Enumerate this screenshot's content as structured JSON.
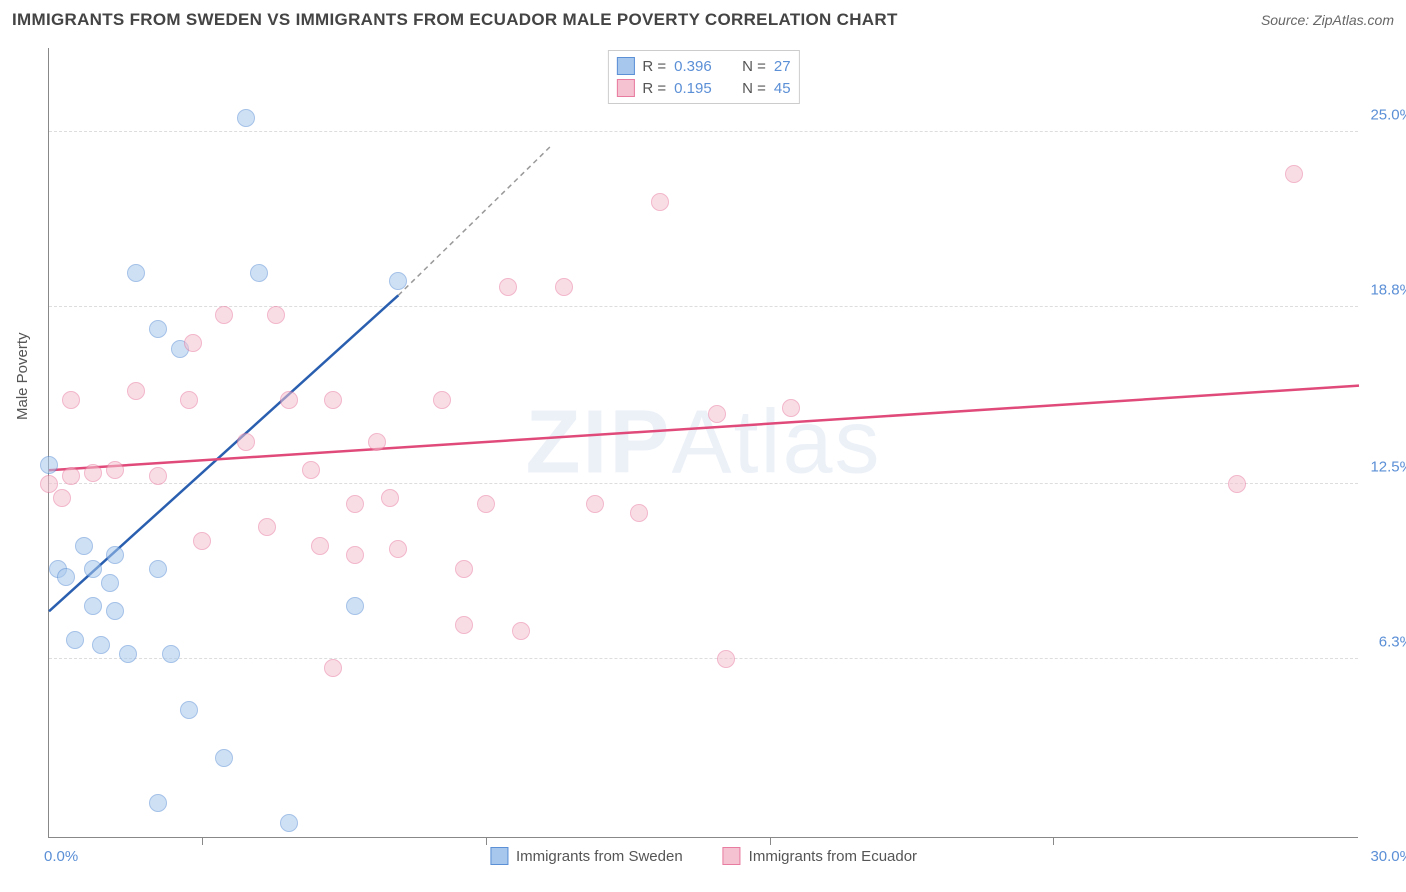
{
  "header": {
    "title": "IMMIGRANTS FROM SWEDEN VS IMMIGRANTS FROM ECUADOR MALE POVERTY CORRELATION CHART",
    "source": "Source: ZipAtlas.com"
  },
  "watermark": {
    "bold": "ZIP",
    "light": "Atlas"
  },
  "chart": {
    "type": "scatter",
    "ylabel": "Male Poverty",
    "xlim": [
      0,
      30
    ],
    "ylim": [
      0,
      28
    ],
    "x_axis_labels": {
      "left": "0.0%",
      "right": "30.0%"
    },
    "y_ticks": [
      {
        "value": 6.3,
        "label": "6.3%"
      },
      {
        "value": 12.5,
        "label": "12.5%"
      },
      {
        "value": 18.8,
        "label": "18.8%"
      },
      {
        "value": 25.0,
        "label": "25.0%"
      }
    ],
    "x_tick_positions": [
      3.5,
      10,
      16.5,
      23
    ],
    "grid_color": "#dddddd",
    "axis_color": "#888888",
    "background_color": "#ffffff",
    "point_radius": 9,
    "point_opacity": 0.55,
    "series": [
      {
        "name": "Immigrants from Sweden",
        "fill_color": "#a7c8ec",
        "stroke_color": "#5b8fd6",
        "trend_color": "#2a5fb0",
        "R": "0.396",
        "N": "27",
        "trend": {
          "x1": 0,
          "y1": 8.0,
          "x2": 8.0,
          "y2": 19.2,
          "dashed_extend_to_x": 11.5,
          "dashed_extend_to_y": 24.5
        },
        "points": [
          [
            0.0,
            13.2
          ],
          [
            0.2,
            9.5
          ],
          [
            0.4,
            9.2
          ],
          [
            0.6,
            7.0
          ],
          [
            0.8,
            10.3
          ],
          [
            1.0,
            9.5
          ],
          [
            1.0,
            8.2
          ],
          [
            1.2,
            6.8
          ],
          [
            1.4,
            9.0
          ],
          [
            1.5,
            10.0
          ],
          [
            1.5,
            8.0
          ],
          [
            1.8,
            6.5
          ],
          [
            2.0,
            20.0
          ],
          [
            2.5,
            18.0
          ],
          [
            2.5,
            9.5
          ],
          [
            2.5,
            1.2
          ],
          [
            2.8,
            6.5
          ],
          [
            3.0,
            17.3
          ],
          [
            3.2,
            4.5
          ],
          [
            4.0,
            2.8
          ],
          [
            4.5,
            25.5
          ],
          [
            4.8,
            20.0
          ],
          [
            5.5,
            0.5
          ],
          [
            7.0,
            8.2
          ],
          [
            8.0,
            19.7
          ]
        ]
      },
      {
        "name": "Immigrants from Ecuador",
        "fill_color": "#f5c2d1",
        "stroke_color": "#e87ba0",
        "trend_color": "#e04a7a",
        "R": "0.195",
        "N": "45",
        "trend": {
          "x1": 0,
          "y1": 13.0,
          "x2": 30,
          "y2": 16.0
        },
        "points": [
          [
            0.0,
            12.5
          ],
          [
            0.3,
            12.0
          ],
          [
            0.5,
            12.8
          ],
          [
            0.5,
            15.5
          ],
          [
            1.0,
            12.9
          ],
          [
            1.5,
            13.0
          ],
          [
            2.0,
            15.8
          ],
          [
            2.5,
            12.8
          ],
          [
            3.2,
            15.5
          ],
          [
            3.3,
            17.5
          ],
          [
            3.5,
            10.5
          ],
          [
            4.0,
            18.5
          ],
          [
            4.5,
            14.0
          ],
          [
            5.0,
            11.0
          ],
          [
            5.2,
            18.5
          ],
          [
            5.5,
            15.5
          ],
          [
            6.0,
            13.0
          ],
          [
            6.2,
            10.3
          ],
          [
            6.5,
            15.5
          ],
          [
            6.5,
            6.0
          ],
          [
            7.0,
            11.8
          ],
          [
            7.0,
            10.0
          ],
          [
            7.5,
            14.0
          ],
          [
            7.8,
            12.0
          ],
          [
            8.0,
            10.2
          ],
          [
            9.0,
            15.5
          ],
          [
            9.5,
            9.5
          ],
          [
            9.5,
            7.5
          ],
          [
            10.0,
            11.8
          ],
          [
            10.5,
            19.5
          ],
          [
            10.8,
            7.3
          ],
          [
            11.8,
            19.5
          ],
          [
            12.5,
            11.8
          ],
          [
            13.5,
            11.5
          ],
          [
            14.0,
            22.5
          ],
          [
            15.3,
            15.0
          ],
          [
            15.5,
            6.3
          ],
          [
            17.0,
            15.2
          ],
          [
            27.2,
            12.5
          ],
          [
            28.5,
            23.5
          ]
        ]
      }
    ],
    "legend_bottom": [
      {
        "label": "Immigrants from Sweden",
        "fill": "#a7c8ec",
        "stroke": "#5b8fd6"
      },
      {
        "label": "Immigrants from Ecuador",
        "fill": "#f5c2d1",
        "stroke": "#e87ba0"
      }
    ]
  }
}
